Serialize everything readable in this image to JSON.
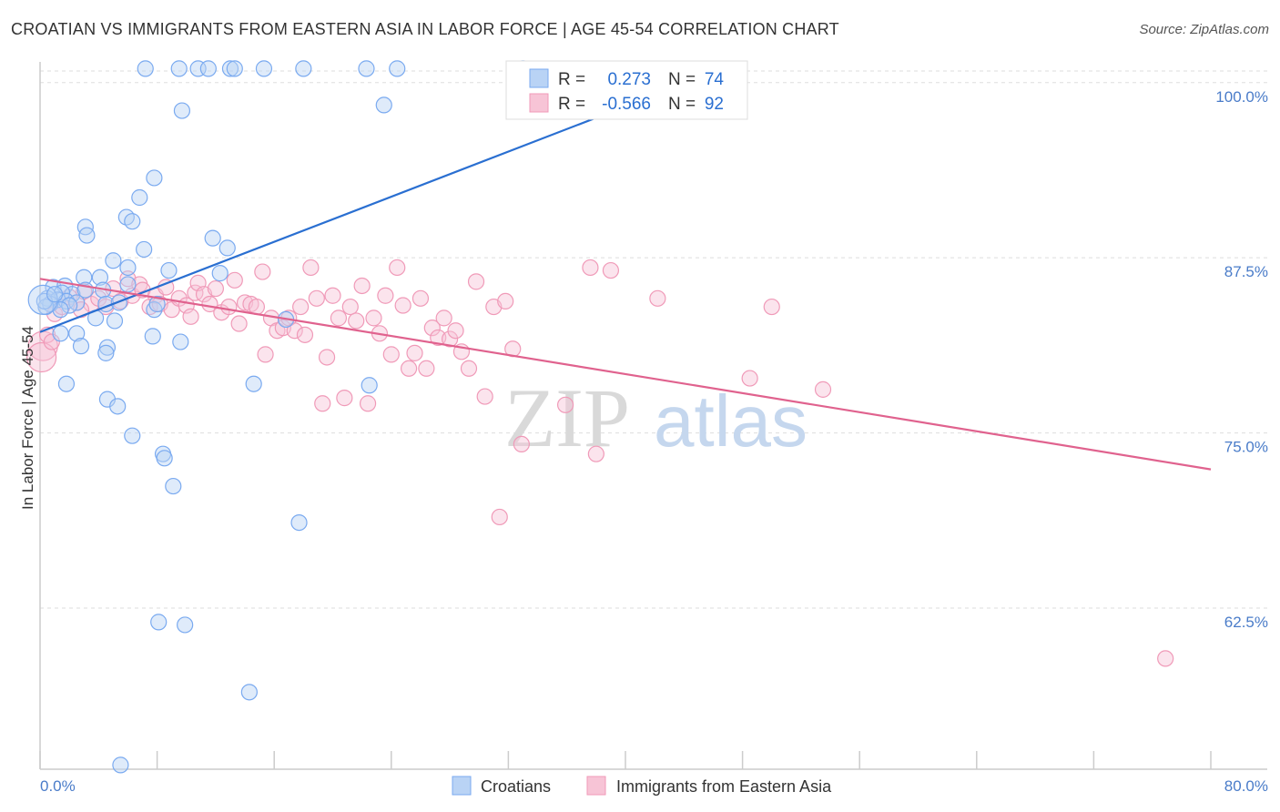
{
  "header": {
    "title": "CROATIAN VS IMMIGRANTS FROM EASTERN ASIA IN LABOR FORCE | AGE 45-54 CORRELATION CHART",
    "source": "Source: ZipAtlas.com"
  },
  "watermark": {
    "zip": "ZIP",
    "atlas": "atlas"
  },
  "colors": {
    "blue": "#7aaaf0",
    "blue_fill": "#b9d3f5",
    "blue_line": "#2a6fd1",
    "pink": "#f09ab8",
    "pink_fill": "#f7c4d6",
    "pink_line": "#e0628e",
    "grid": "#dddddd",
    "label": "#4a7cc9"
  },
  "legend": {
    "rows": [
      {
        "r_label": "R =",
        "r_value": "0.273",
        "n_label": "N =",
        "n_value": "74"
      },
      {
        "r_label": "R =",
        "r_value": "-0.566",
        "n_label": "N =",
        "n_value": "92"
      }
    ]
  },
  "bottom_legend": {
    "items": [
      {
        "label": "Croatians"
      },
      {
        "label": "Immigrants from Eastern Asia"
      }
    ]
  },
  "chart_data": {
    "type": "scatter",
    "title": "CROATIAN VS IMMIGRANTS FROM EASTERN ASIA IN LABOR FORCE | AGE 45-54 CORRELATION CHART",
    "xlabel": "",
    "ylabel": "In Labor Force | Age 45-54",
    "xlim": [
      0,
      80
    ],
    "ylim": [
      51,
      102
    ],
    "x_tick_labels": [
      "0.0%",
      "80.0%"
    ],
    "y_ticks": [
      100,
      87.5,
      75,
      62.5
    ],
    "y_tick_labels": [
      "100.0%",
      "87.5%",
      "75.0%",
      "62.5%"
    ],
    "grid": true,
    "series": [
      {
        "name": "Croatians",
        "r": 0.273,
        "n": 74,
        "trend": {
          "x": [
            0,
            40.5
          ],
          "y": [
            82.2,
            98.5
          ]
        },
        "points": [
          [
            7.2,
            101
          ],
          [
            9.5,
            101
          ],
          [
            10.8,
            101
          ],
          [
            11.5,
            101
          ],
          [
            13,
            101
          ],
          [
            13.3,
            101
          ],
          [
            15.3,
            101
          ],
          [
            18,
            101
          ],
          [
            22.3,
            101
          ],
          [
            24.4,
            101
          ],
          [
            33,
            101
          ],
          [
            9.7,
            98
          ],
          [
            23.5,
            98.4
          ],
          [
            7.8,
            93.2
          ],
          [
            6.8,
            91.8
          ],
          [
            5.9,
            90.4
          ],
          [
            6.3,
            90.1
          ],
          [
            3.1,
            89.7
          ],
          [
            3.2,
            89.1
          ],
          [
            11.8,
            88.9
          ],
          [
            12.8,
            88.2
          ],
          [
            7.1,
            88.1
          ],
          [
            5.0,
            87.3
          ],
          [
            3.0,
            86.1
          ],
          [
            8.8,
            86.6
          ],
          [
            6.0,
            86.8
          ],
          [
            12.3,
            86.4
          ],
          [
            4.1,
            86.1
          ],
          [
            6.0,
            85.6
          ],
          [
            0.9,
            85.4
          ],
          [
            1.7,
            85.5
          ],
          [
            2.2,
            84.9
          ],
          [
            3.1,
            85.2
          ],
          [
            4.3,
            85.2
          ],
          [
            1.5,
            85.0
          ],
          [
            0.5,
            84.6
          ],
          [
            1.2,
            84.5
          ],
          [
            0.7,
            84.2
          ],
          [
            1.8,
            84.4
          ],
          [
            2.5,
            84.3
          ],
          [
            0.4,
            84.0
          ],
          [
            2.0,
            84.1
          ],
          [
            4.5,
            84.2
          ],
          [
            1.4,
            83.8
          ],
          [
            5.4,
            84.3
          ],
          [
            7.8,
            83.8
          ],
          [
            8.0,
            84.2
          ],
          [
            3.8,
            83.2
          ],
          [
            5.1,
            83.0
          ],
          [
            16.8,
            83.1
          ],
          [
            1.4,
            82.1
          ],
          [
            2.5,
            82.1
          ],
          [
            7.7,
            81.9
          ],
          [
            9.6,
            81.5
          ],
          [
            2.8,
            81.2
          ],
          [
            4.6,
            81.1
          ],
          [
            4.5,
            80.7
          ],
          [
            1.8,
            78.5
          ],
          [
            14.6,
            78.5
          ],
          [
            22.5,
            78.4
          ],
          [
            4.6,
            77.4
          ],
          [
            5.3,
            76.9
          ],
          [
            6.3,
            74.8
          ],
          [
            8.4,
            73.5
          ],
          [
            8.5,
            73.2
          ],
          [
            9.1,
            71.2
          ],
          [
            17.7,
            68.6
          ],
          [
            8.1,
            61.5
          ],
          [
            9.9,
            61.3
          ],
          [
            14.3,
            56.5
          ],
          [
            5.5,
            51.3
          ],
          [
            0.3,
            84.4
          ],
          [
            0.2,
            84.5
          ],
          [
            1.0,
            84.9
          ]
        ]
      },
      {
        "name": "Immigrants from Eastern Asia",
        "r": -0.566,
        "n": 92,
        "trend": {
          "x": [
            0,
            80
          ],
          "y": [
            86.0,
            72.4
          ]
        },
        "points": [
          [
            0.2,
            81.2
          ],
          [
            0.1,
            80.4
          ],
          [
            1.0,
            83.5
          ],
          [
            1.5,
            84.0
          ],
          [
            2.0,
            84.7
          ],
          [
            2.5,
            84.3
          ],
          [
            3.0,
            85.1
          ],
          [
            3.5,
            84.2
          ],
          [
            4.0,
            84.6
          ],
          [
            4.5,
            84.0
          ],
          [
            5.0,
            85.3
          ],
          [
            5.5,
            84.4
          ],
          [
            6.0,
            86.0
          ],
          [
            6.3,
            84.8
          ],
          [
            6.8,
            85.6
          ],
          [
            7.0,
            85.2
          ],
          [
            7.5,
            84.0
          ],
          [
            7.9,
            84.8
          ],
          [
            8.2,
            84.2
          ],
          [
            8.6,
            85.4
          ],
          [
            9.0,
            83.8
          ],
          [
            9.5,
            84.6
          ],
          [
            10.0,
            84.1
          ],
          [
            10.3,
            83.3
          ],
          [
            10.6,
            85.0
          ],
          [
            10.8,
            85.7
          ],
          [
            11.2,
            84.9
          ],
          [
            11.6,
            84.2
          ],
          [
            12.0,
            85.3
          ],
          [
            12.4,
            83.6
          ],
          [
            12.9,
            84.0
          ],
          [
            13.3,
            85.9
          ],
          [
            13.6,
            82.8
          ],
          [
            14.0,
            84.3
          ],
          [
            14.4,
            84.2
          ],
          [
            14.8,
            84.0
          ],
          [
            15.2,
            86.5
          ],
          [
            15.4,
            80.6
          ],
          [
            15.8,
            83.2
          ],
          [
            16.2,
            82.3
          ],
          [
            16.6,
            82.5
          ],
          [
            17.0,
            83.2
          ],
          [
            17.4,
            82.3
          ],
          [
            17.8,
            84.0
          ],
          [
            18.1,
            82.0
          ],
          [
            18.5,
            86.8
          ],
          [
            18.9,
            84.6
          ],
          [
            19.3,
            77.1
          ],
          [
            19.6,
            80.4
          ],
          [
            20.0,
            84.8
          ],
          [
            20.4,
            83.2
          ],
          [
            20.8,
            77.5
          ],
          [
            21.2,
            84.0
          ],
          [
            21.6,
            83.0
          ],
          [
            22.0,
            85.5
          ],
          [
            22.4,
            77.1
          ],
          [
            22.8,
            83.2
          ],
          [
            23.2,
            82.1
          ],
          [
            23.6,
            84.8
          ],
          [
            24.0,
            80.6
          ],
          [
            24.4,
            86.8
          ],
          [
            24.8,
            84.1
          ],
          [
            25.2,
            79.6
          ],
          [
            25.6,
            80.7
          ],
          [
            26.0,
            84.6
          ],
          [
            26.4,
            79.6
          ],
          [
            26.8,
            82.5
          ],
          [
            27.2,
            81.8
          ],
          [
            27.6,
            83.2
          ],
          [
            28.0,
            81.7
          ],
          [
            28.4,
            82.3
          ],
          [
            28.8,
            80.8
          ],
          [
            29.3,
            79.6
          ],
          [
            29.8,
            85.8
          ],
          [
            30.4,
            77.6
          ],
          [
            31.0,
            84.0
          ],
          [
            31.4,
            69.0
          ],
          [
            31.8,
            84.4
          ],
          [
            32.3,
            81.0
          ],
          [
            32.9,
            74.2
          ],
          [
            35.9,
            77.0
          ],
          [
            37.6,
            86.8
          ],
          [
            38.0,
            73.5
          ],
          [
            39.0,
            86.6
          ],
          [
            42.2,
            84.6
          ],
          [
            48.5,
            78.9
          ],
          [
            50.0,
            84.0
          ],
          [
            53.5,
            78.1
          ],
          [
            76.9,
            58.9
          ],
          [
            0.5,
            82.0
          ],
          [
            0.8,
            81.5
          ],
          [
            2.8,
            83.8
          ]
        ]
      }
    ]
  }
}
